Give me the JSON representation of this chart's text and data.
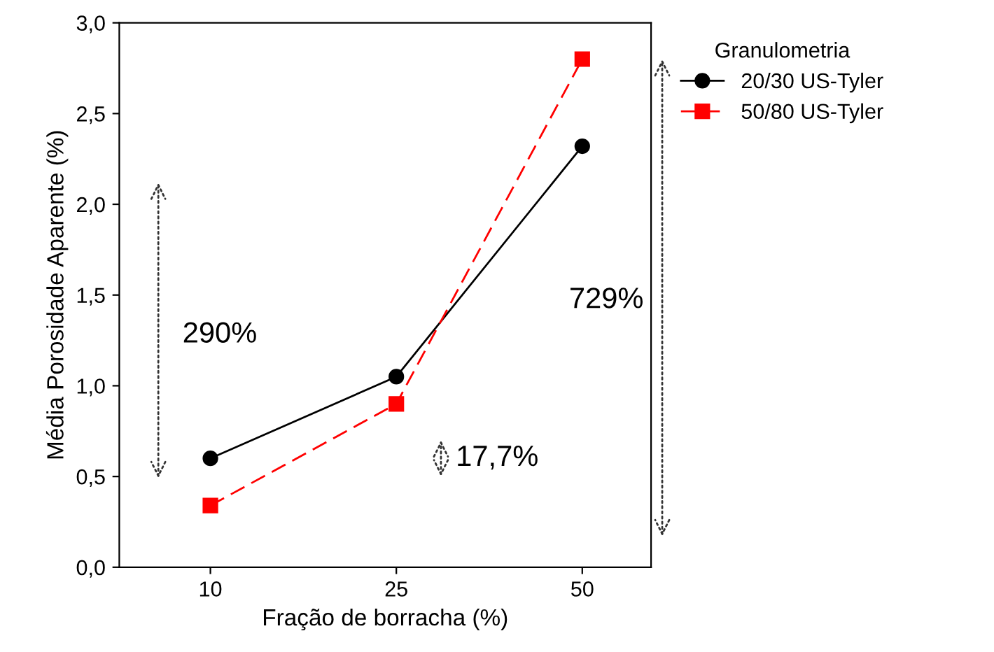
{
  "chart_data": {
    "type": "line",
    "xlabel": "Fração de borracha (%)",
    "ylabel": "Média Porosidade Aparente (%)",
    "legend_title": "Granulometria",
    "legend": "top right",
    "categories": [
      "10",
      "25",
      "50"
    ],
    "series": [
      {
        "name": "20/30 US-Tyler",
        "color": "#000000",
        "marker": "circle",
        "line_style": "solid",
        "values": [
          0.6,
          1.05,
          2.32
        ]
      },
      {
        "name": "50/80 US-Tyler",
        "color": "#ff0000",
        "marker": "square",
        "line_style": "dashed",
        "values": [
          0.34,
          0.9,
          2.8
        ]
      }
    ],
    "ylim": [
      0,
      3
    ],
    "yticks": [
      {
        "value": 0,
        "label": "0,0"
      },
      {
        "value": 0.5,
        "label": "0,5"
      },
      {
        "value": 1,
        "label": "1,0"
      },
      {
        "value": 1.5,
        "label": "1,5"
      },
      {
        "value": 2,
        "label": "2,0"
      },
      {
        "value": 2.5,
        "label": "2,5"
      },
      {
        "value": 3,
        "label": "3,0"
      }
    ],
    "grid": false,
    "annotations": [
      "290%",
      "17,7%",
      "729%"
    ]
  }
}
